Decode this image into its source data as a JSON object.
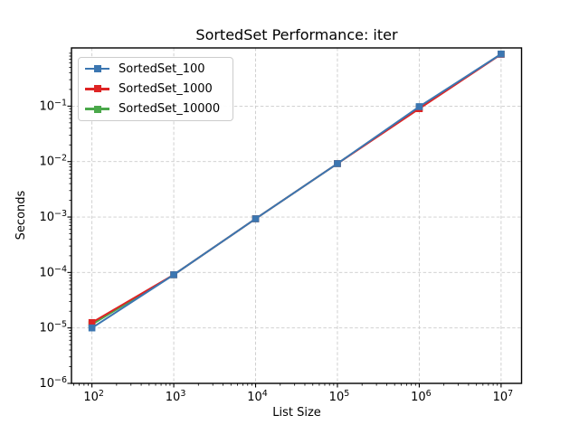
{
  "chart_data": {
    "type": "line",
    "title": "SortedSet Performance: iter",
    "xlabel": "List Size",
    "ylabel": "Seconds",
    "x_scale": "log",
    "y_scale": "log",
    "grid": true,
    "grid_color": "#cccccc",
    "legend_position": "upper left",
    "marker": "square",
    "x": [
      100,
      1000,
      10000,
      100000,
      1000000,
      10000000
    ],
    "series": [
      {
        "name": "SortedSet_100",
        "color": "#3b76b1",
        "values": [
          1e-05,
          9.1e-05,
          0.00093,
          0.0092,
          0.098,
          0.87
        ]
      },
      {
        "name": "SortedSet_1000",
        "color": "#de2424",
        "values": [
          1.25e-05,
          9.1e-05,
          0.00093,
          0.0092,
          0.09,
          0.86
        ]
      },
      {
        "name": "SortedSet_10000",
        "color": "#4aa84a",
        "values": [
          1.15e-05,
          9.1e-05,
          0.00093,
          0.0092,
          0.094,
          0.87
        ]
      }
    ],
    "x_tick_exponents": [
      2,
      3,
      4,
      5,
      6,
      7
    ],
    "y_tick_exponents": [
      -6,
      -5,
      -4,
      -3,
      -2,
      -1
    ],
    "xlog_range": [
      1.75,
      7.25
    ],
    "ylog_range": [
      -6,
      0.05
    ]
  }
}
